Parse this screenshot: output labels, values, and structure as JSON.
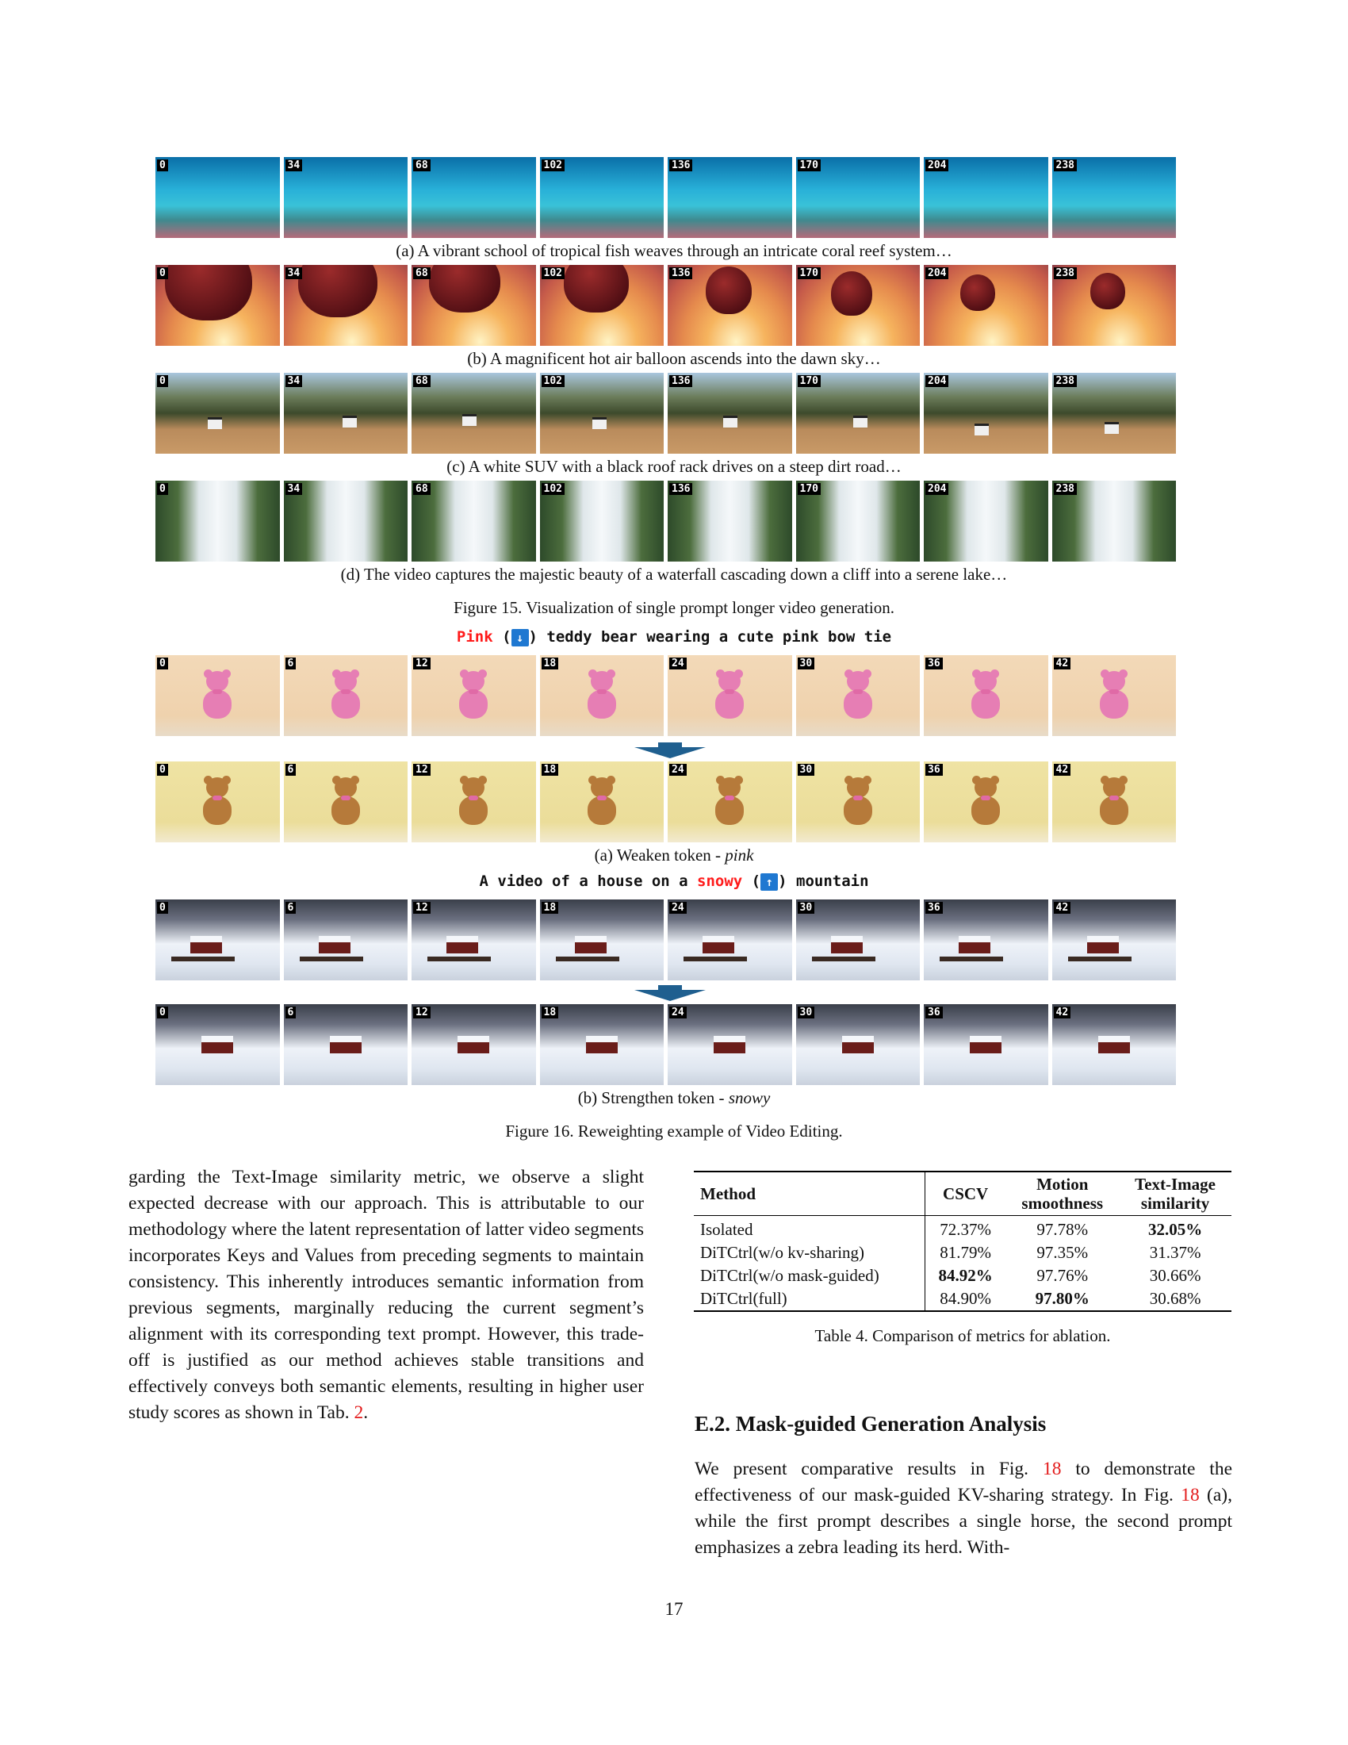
{
  "figure15": {
    "frame_labels": [
      "0",
      "34",
      "68",
      "102",
      "136",
      "170",
      "204",
      "238"
    ],
    "captions": {
      "a": "(a) A vibrant school of tropical fish weaves through an intricate coral reef system…",
      "b": "(b) A magnificent hot air balloon ascends into the dawn sky…",
      "c": "(c) A white SUV with a black roof rack drives on a steep dirt road…",
      "d": "(d) The video captures the majestic beauty of a waterfall cascading down a cliff into a serene lake…"
    },
    "title": "Figure 15. Visualization of single prompt longer video generation."
  },
  "figure16": {
    "frame_labels": [
      "0",
      "6",
      "12",
      "18",
      "24",
      "30",
      "36",
      "42"
    ],
    "prompt_a": {
      "red_word": "Pink",
      "open": " (",
      "arrow": "↓",
      "rest": ") teddy bear wearing a cute pink bow tie"
    },
    "caption_a_prefix": "(a) Weaken token - ",
    "caption_a_word": "pink",
    "prompt_b": {
      "before": "A video of a house on a ",
      "red_word": "snowy",
      "open": " (",
      "arrow": "↑",
      "rest": ") mountain"
    },
    "caption_b_prefix": "(b) Strengthen token - ",
    "caption_b_word": "snowy",
    "title": "Figure 16. Reweighting example of Video Editing."
  },
  "left_column": {
    "paragraph": "garding the Text-Image similarity metric, we observe a slight expected decrease with our approach. This is attributable to our methodology where the latent representation of latter video segments incorporates Keys and Values from preceding segments to maintain consistency. This inherently introduces semantic information from previous segments, marginally reducing the current segment’s alignment with its corresponding text prompt. However, this trade-off is justified as our method achieves stable transitions and effectively conveys both semantic elements, resulting in higher user study scores as shown in Tab. ",
    "ref": "2",
    "end": "."
  },
  "table4": {
    "headers": [
      "Method",
      "CSCV",
      "Motion smoothness",
      "Text-Image similarity"
    ],
    "header_lines": [
      [
        "Method"
      ],
      [
        "CSCV"
      ],
      [
        "Motion",
        "smoothness"
      ],
      [
        "Text-Image",
        "similarity"
      ]
    ],
    "rows": [
      [
        "Isolated",
        "72.37%",
        "97.78%",
        "32.05%"
      ],
      [
        "DiTCtrl(w/o kv-sharing)",
        "81.79%",
        "97.35%",
        "31.37%"
      ],
      [
        "DiTCtrl(w/o mask-guided)",
        "84.92%",
        "97.76%",
        "30.66%"
      ],
      [
        "DiTCtrl(full)",
        "84.90%",
        "97.80%",
        "30.68%"
      ]
    ],
    "caption": "Table 4. Comparison of metrics for ablation."
  },
  "section": {
    "title": "E.2. Mask-guided Generation Analysis",
    "p_1": "We present comparative results in Fig. ",
    "ref1": "18",
    "p_2": " to demonstrate the effectiveness of our mask-guided KV-sharing strategy. In Fig. ",
    "ref2": "18",
    "p_3": " (a), while the first prompt describes a single horse, the second prompt emphasizes a zebra leading its herd. With-"
  },
  "page_number": "17",
  "colors": {
    "highlight_red": "#ff1a1a",
    "ref_red": "#e31b1b",
    "arrow_box": "#1f78d1",
    "arrow_shape": "#1f5f8f"
  }
}
